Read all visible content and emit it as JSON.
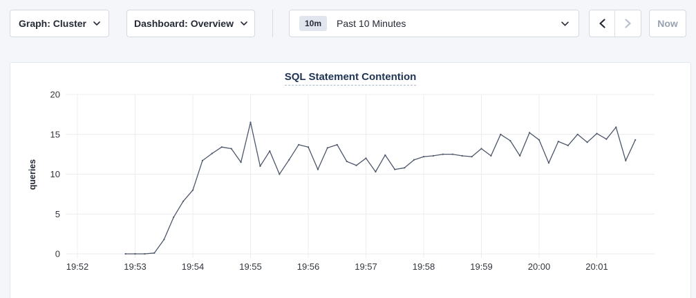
{
  "toolbar": {
    "graph_dropdown_label": "Graph: Cluster",
    "dashboard_dropdown_label": "Dashboard: Overview",
    "time_window_badge": "10m",
    "time_window_label": "Past 10 Minutes",
    "now_button_label": "Now"
  },
  "chart_data": {
    "type": "line",
    "title": "SQL Statement Contention",
    "xlabel": "",
    "ylabel": "queries",
    "ylim": [
      0,
      20
    ],
    "yticks": [
      0,
      5,
      10,
      15,
      20
    ],
    "xticks": [
      "19:52",
      "19:53",
      "19:54",
      "19:55",
      "19:56",
      "19:57",
      "19:58",
      "19:59",
      "20:00",
      "20:01"
    ],
    "grid": true,
    "legend_position": "none",
    "series": [
      {
        "name": "SQL Statement Contention",
        "color": "#4c566a",
        "points": [
          [
            "19:52:50",
            0
          ],
          [
            "19:53:00",
            0
          ],
          [
            "19:53:10",
            0
          ],
          [
            "19:53:20",
            0.1
          ],
          [
            "19:53:30",
            1.8
          ],
          [
            "19:53:40",
            4.6
          ],
          [
            "19:53:50",
            6.6
          ],
          [
            "19:54:00",
            8.0
          ],
          [
            "19:54:10",
            11.7
          ],
          [
            "19:54:20",
            12.6
          ],
          [
            "19:54:30",
            13.4
          ],
          [
            "19:54:40",
            13.2
          ],
          [
            "19:54:50",
            11.5
          ],
          [
            "19:55:00",
            16.5
          ],
          [
            "19:55:10",
            11.0
          ],
          [
            "19:55:20",
            12.9
          ],
          [
            "19:55:30",
            10.0
          ],
          [
            "19:55:40",
            11.8
          ],
          [
            "19:55:50",
            13.7
          ],
          [
            "19:56:00",
            13.4
          ],
          [
            "19:56:10",
            10.6
          ],
          [
            "19:56:20",
            13.3
          ],
          [
            "19:56:30",
            13.7
          ],
          [
            "19:56:40",
            11.6
          ],
          [
            "19:56:50",
            11.1
          ],
          [
            "19:57:00",
            12.0
          ],
          [
            "19:57:10",
            10.3
          ],
          [
            "19:57:20",
            12.4
          ],
          [
            "19:57:30",
            10.6
          ],
          [
            "19:57:40",
            10.8
          ],
          [
            "19:57:50",
            11.8
          ],
          [
            "19:58:00",
            12.2
          ],
          [
            "19:58:10",
            12.3
          ],
          [
            "19:58:20",
            12.5
          ],
          [
            "19:58:30",
            12.5
          ],
          [
            "19:58:40",
            12.3
          ],
          [
            "19:58:50",
            12.2
          ],
          [
            "19:59:00",
            13.2
          ],
          [
            "19:59:10",
            12.3
          ],
          [
            "19:59:20",
            15.0
          ],
          [
            "19:59:30",
            14.2
          ],
          [
            "19:59:40",
            12.3
          ],
          [
            "19:59:50",
            15.2
          ],
          [
            "20:00:00",
            14.3
          ],
          [
            "20:00:10",
            11.4
          ],
          [
            "20:00:20",
            14.1
          ],
          [
            "20:00:30",
            13.6
          ],
          [
            "20:00:40",
            15.0
          ],
          [
            "20:00:50",
            14.0
          ],
          [
            "20:01:00",
            15.1
          ],
          [
            "20:01:10",
            14.4
          ],
          [
            "20:01:20",
            15.9
          ],
          [
            "20:01:30",
            11.7
          ],
          [
            "20:01:40",
            14.3
          ]
        ]
      }
    ]
  },
  "colors": {
    "page_bg": "#f4f6fa",
    "panel_bg": "#ffffff",
    "panel_border": "#e2e6ed",
    "control_border": "#d3d9e2",
    "text_dark": "#242a35",
    "title_navy": "#1f3354",
    "disabled_text": "#98a1b1",
    "disabled_icon": "#b7bfcc",
    "badge_bg": "#e1e6ee",
    "gridline": "#ececee",
    "line": "#4c566a"
  },
  "icons": {
    "dropdown_chevron": "chevron-down-icon",
    "prev": "chevron-left-icon",
    "next": "chevron-right-icon"
  }
}
